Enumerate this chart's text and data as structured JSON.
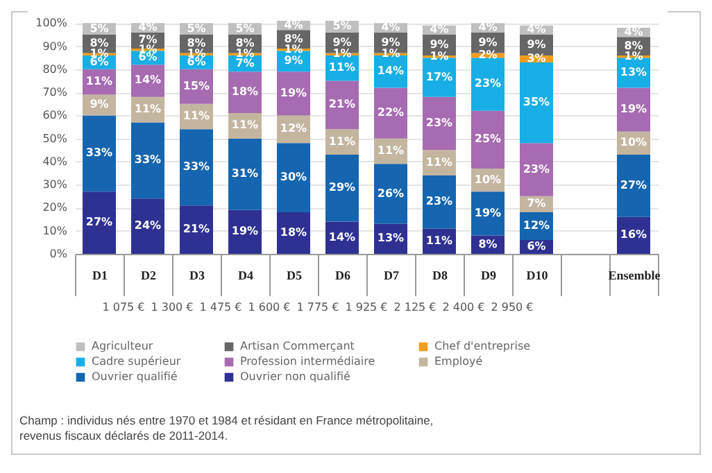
{
  "chart_data": {
    "type": "bar",
    "stacked": true,
    "grid": "y",
    "legend": "bottom",
    "categories": [
      "D1",
      "D2",
      "D3",
      "D4",
      "D5",
      "D6",
      "D7",
      "D8",
      "D9",
      "D10",
      null,
      "Ensemble"
    ],
    "series": [
      {
        "name": "Ouvrier non qualifié",
        "color": "#2e3192",
        "values": [
          27,
          24,
          21,
          19,
          18,
          14,
          13,
          11,
          8,
          6,
          null,
          16
        ],
        "value_labels": [
          "27%",
          "24%",
          "21%",
          "19%",
          "18%",
          "14%",
          "13%",
          "11%",
          "8%",
          "6%",
          null,
          "16%"
        ]
      },
      {
        "name": "Ouvrier qualifié",
        "color": "#1565b0",
        "values": [
          33,
          33,
          33,
          31,
          30,
          29,
          26,
          23,
          19,
          12,
          null,
          27
        ],
        "value_labels": [
          "33%",
          "33%",
          "33%",
          "31%",
          "30%",
          "29%",
          "26%",
          "23%",
          "19%",
          "12%",
          null,
          "27%"
        ]
      },
      {
        "name": "Employé",
        "color": "#c4b59f",
        "values": [
          9,
          11,
          11,
          11,
          12,
          11,
          11,
          11,
          10,
          7,
          null,
          10
        ],
        "value_labels": [
          "9%",
          "11%",
          "11%",
          "11%",
          "12%",
          "11%",
          "11%",
          "11%",
          "10%",
          "7%",
          null,
          "10%"
        ]
      },
      {
        "name": "Profession intermédiaire",
        "color": "#a66bb0",
        "values": [
          11,
          14,
          15,
          18,
          19,
          21,
          22,
          23,
          25,
          23,
          null,
          19
        ],
        "value_labels": [
          "11%",
          "14%",
          "15%",
          "18%",
          "19%",
          "21%",
          "22%",
          "23%",
          "25%",
          "23%",
          null,
          "19%"
        ]
      },
      {
        "name": "Cadre supérieur",
        "color": "#18aee6",
        "values": [
          6,
          6,
          6,
          7,
          9,
          11,
          14,
          17,
          23,
          35,
          null,
          13
        ],
        "value_labels": [
          "6%",
          "6%",
          "6%",
          "7%",
          "9%",
          "11%",
          "14%",
          "17%",
          "23%",
          "35%",
          null,
          "13%"
        ]
      },
      {
        "name": "Chef d'entreprise",
        "color": "#f39c1f",
        "values": [
          1,
          1,
          1,
          1,
          1,
          1,
          1,
          1,
          2,
          3,
          null,
          1
        ],
        "value_labels": [
          "1%",
          "1%",
          "1%",
          "1%",
          "1%",
          "1%",
          "1%",
          "1%",
          "2%",
          "3%",
          null,
          "1%"
        ]
      },
      {
        "name": "Artisan Commerçant",
        "color": "#666666",
        "values": [
          8,
          7,
          8,
          8,
          8,
          9,
          9,
          9,
          9,
          9,
          null,
          8
        ],
        "value_labels": [
          "8%",
          "7%",
          "8%",
          "8%",
          "8%",
          "9%",
          "9%",
          "9%",
          "9%",
          "9%",
          null,
          "8%"
        ]
      },
      {
        "name": "Agriculteur",
        "color": "#bfbfbf",
        "values": [
          5,
          4,
          5,
          5,
          4,
          5,
          4,
          4,
          4,
          4,
          null,
          4
        ],
        "value_labels": [
          "5%",
          "4%",
          "5%",
          "5%",
          "4%",
          "5%",
          "4%",
          "4%",
          "4%",
          "4%",
          null,
          "4%"
        ]
      }
    ],
    "ylim": [
      0,
      101
    ],
    "yticks": [
      {
        "value": 0,
        "label": "0%"
      },
      {
        "value": 10,
        "label": "10%"
      },
      {
        "value": 20,
        "label": "20%"
      },
      {
        "value": 30,
        "label": "30%"
      },
      {
        "value": 40,
        "label": "40%"
      },
      {
        "value": 50,
        "label": "50%"
      },
      {
        "value": 60,
        "label": "60%"
      },
      {
        "value": 70,
        "label": "70%"
      },
      {
        "value": 80,
        "label": "80%"
      },
      {
        "value": 90,
        "label": "90%"
      },
      {
        "value": 100,
        "label": "100%"
      }
    ],
    "annotations": [
      "1 075 €",
      "1 300 €",
      "1 475 €",
      "1 600 €",
      "1 775 €",
      "1 925 €",
      "2 125 €",
      "2 400 €",
      "2 950 €",
      "Champ : individus nés entre 1970 et 1984 et résidant en France métropolitaine,",
      "revenus fiscaux déclarés de 2011-2014."
    ]
  }
}
